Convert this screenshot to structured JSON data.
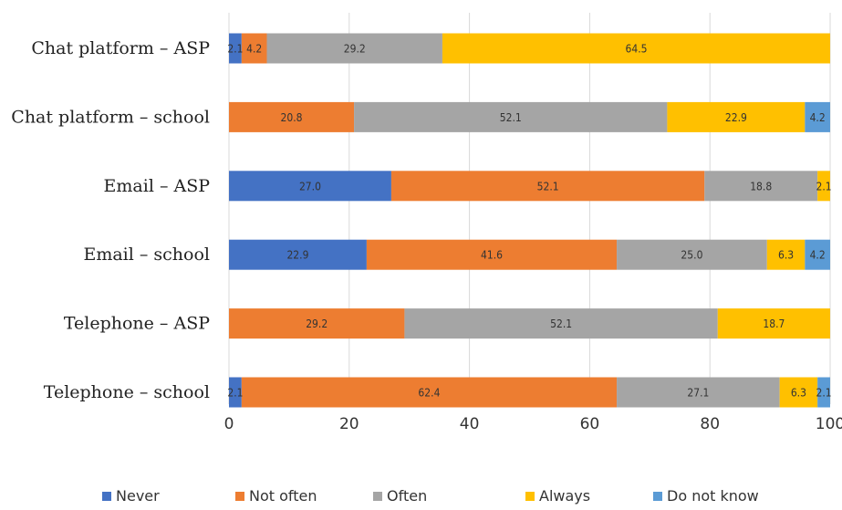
{
  "chart_data": {
    "type": "bar",
    "orientation": "horizontal",
    "stacked": true,
    "categories": [
      "Chat platform – ASP",
      "Chat platform – school",
      "Email – ASP",
      "Email – school",
      "Telephone – ASP",
      "Telephone – school"
    ],
    "series": [
      {
        "name": "Never",
        "color": "#4472C4",
        "values": [
          2.1,
          0,
          27.0,
          22.9,
          0,
          2.1
        ],
        "labels": [
          "2.1",
          "",
          "27.0",
          "22.9",
          "",
          "2.1"
        ]
      },
      {
        "name": "Not often",
        "color": "#ED7D31",
        "values": [
          4.2,
          20.8,
          52.1,
          41.6,
          29.2,
          62.4
        ],
        "labels": [
          "4.2",
          "20.8",
          "52.1",
          "41.6",
          "29.2",
          "62.4"
        ]
      },
      {
        "name": "Often",
        "color": "#A5A5A5",
        "values": [
          29.2,
          52.1,
          18.8,
          25.0,
          52.1,
          27.1
        ],
        "labels": [
          "29.2",
          "52.1",
          "18.8",
          "25.0",
          "52.1",
          "27.1"
        ]
      },
      {
        "name": "Always",
        "color": "#FFC000",
        "values": [
          64.5,
          22.9,
          2.1,
          6.3,
          18.7,
          6.3
        ],
        "labels": [
          "64.5",
          "22.9",
          "2.1",
          "6.3",
          "18.7",
          "6.3"
        ]
      },
      {
        "name": "Do not know",
        "color": "#5B9BD5",
        "values": [
          0,
          4.2,
          0,
          4.2,
          0,
          2.1
        ],
        "labels": [
          "",
          "4.2",
          "",
          "4.2",
          "",
          "2.1"
        ]
      }
    ],
    "xlim": [
      0,
      100
    ],
    "xticks": [
      "0",
      "20",
      "40",
      "60",
      "80",
      "100"
    ],
    "grid": "vertical",
    "legend_position": "bottom",
    "title": "",
    "xlabel": "",
    "ylabel": ""
  }
}
